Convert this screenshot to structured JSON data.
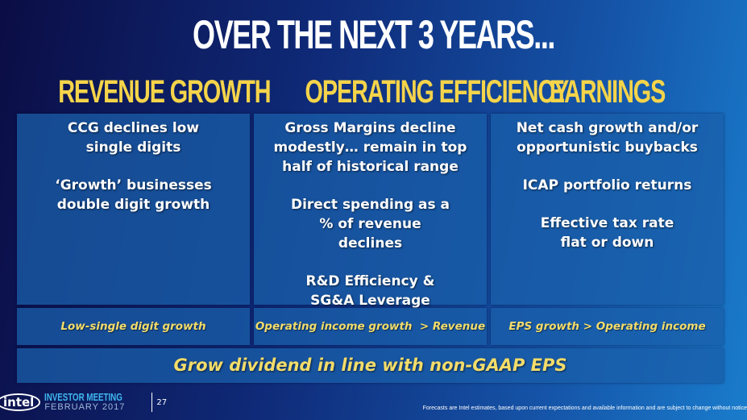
{
  "title": "OVER THE NEXT 3 YEARS...",
  "columns": [
    {
      "header": "REVENUE GROWTH",
      "points": [
        "CCG declines low single digits",
        "‘Growth’ businesses double digit growth"
      ],
      "summary": "Low-single digit growth"
    },
    {
      "header": "OPERATING EFFICIENCY",
      "points": [
        "Gross Margins decline modestly… remain in top half of historical range",
        "Direct spending as a % of revenue declines",
        "R&D Efficiency & SG&A Leverage"
      ],
      "summary": "Operating income growth  > Revenue"
    },
    {
      "header": "EARNINGS",
      "points": [
        "Net cash growth and/or opportunistic buybacks",
        "ICAP portfolio returns",
        "Effective tax rate flat or down"
      ],
      "summary": "EPS growth > Operating income"
    }
  ],
  "dividend": "Grow dividend in line with non-GAAP EPS",
  "footer": {
    "logo": "intel",
    "event": "INVESTOR MEETING",
    "date": "FEBRUARY 2017",
    "page": "27",
    "disclaimer": "Forecasts are Intel estimates, based upon current expectations and available information and are subject to change without notice"
  },
  "colors": {
    "header": "#f5d44a",
    "summary": "#f3dc6a",
    "box": "#1a5fa8"
  }
}
